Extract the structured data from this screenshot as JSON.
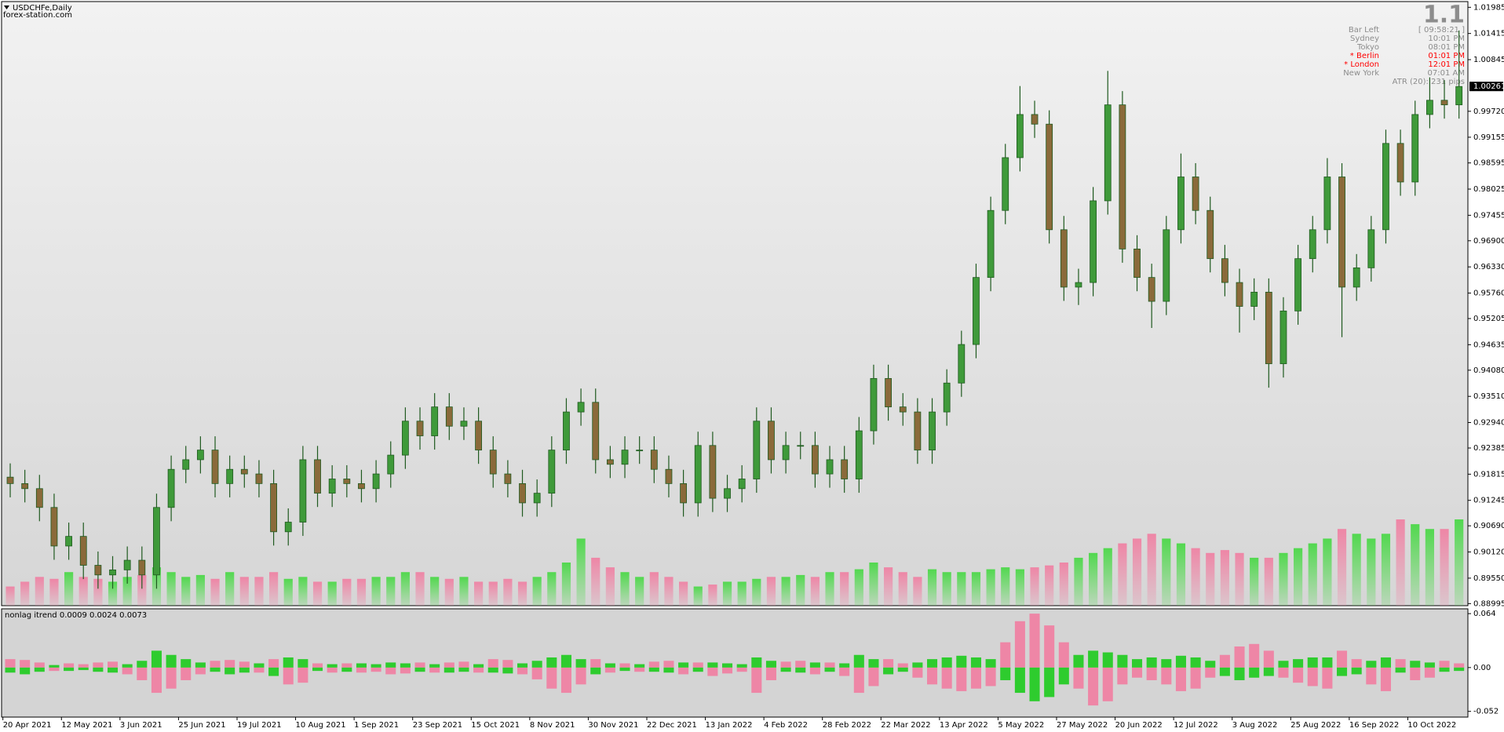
{
  "header": {
    "symbol": "USDCHFe,Daily",
    "source": "forex-station.com"
  },
  "info": {
    "big": "1.1",
    "rows": [
      {
        "label": "Bar Left",
        "value": "[ 09:58:21 ]"
      },
      {
        "label": "Sydney",
        "value": "10:01 PM"
      },
      {
        "label": "Tokyo",
        "value": "08:01 PM"
      },
      {
        "label": "* Berlin",
        "value": "01:01 PM",
        "color": "#ff0000"
      },
      {
        "label": "* London",
        "value": "12:01 PM",
        "color": "#ff0000"
      },
      {
        "label": "New York",
        "value": "07:01 AM"
      }
    ],
    "atr": "ATR (20): 231 pips"
  },
  "chart_data": [
    {
      "type": "candlestick",
      "categories": [
        "20 Apr 2021",
        null,
        null,
        null,
        "12 May 2021",
        null,
        null,
        null,
        "3 Jun 2021",
        null,
        null,
        null,
        "25 Jun 2021",
        null,
        null,
        null,
        "19 Jul 2021",
        null,
        null,
        null,
        "10 Aug 2021",
        null,
        null,
        null,
        "1 Sep 2021",
        null,
        null,
        null,
        "23 Sep 2021",
        null,
        null,
        null,
        "15 Oct 2021",
        null,
        null,
        null,
        "8 Nov 2021",
        null,
        null,
        null,
        "30 Nov 2021",
        null,
        null,
        null,
        "22 Dec 2021",
        null,
        null,
        null,
        "13 Jan 2022",
        null,
        null,
        null,
        "4 Feb 2022",
        null,
        null,
        null,
        "28 Feb 2022",
        null,
        null,
        null,
        "22 Mar 2022",
        null,
        null,
        null,
        "13 Apr 2022",
        null,
        null,
        null,
        "5 May 2022",
        null,
        null,
        null,
        "27 May 2022",
        null,
        null,
        null,
        "20 Jun 2022",
        null,
        null,
        null,
        "12 Jul 2022",
        null,
        null,
        null,
        "3 Aug 2022",
        null,
        null,
        null,
        "25 Aug 2022",
        null,
        null,
        null,
        "16 Sep 2022",
        null,
        null,
        null,
        "10 Oct 2022",
        null,
        null,
        null
      ],
      "open": [
        0.9175,
        0.9161,
        0.915,
        0.9109,
        0.9025,
        0.9046,
        0.8983,
        0.8962,
        0.8973,
        0.8994,
        0.8962,
        0.9109,
        0.9192,
        0.9213,
        0.9234,
        0.9161,
        0.9192,
        0.9182,
        0.9161,
        0.9056,
        0.9077,
        0.9213,
        0.914,
        0.9171,
        0.9161,
        0.915,
        0.9182,
        0.9223,
        0.9297,
        0.9265,
        0.9328,
        0.9286,
        0.9297,
        0.9234,
        0.9182,
        0.9161,
        0.9119,
        0.914,
        0.9234,
        0.9317,
        0.9338,
        0.9213,
        0.9203,
        0.9234,
        0.9234,
        0.9192,
        0.9161,
        0.9119,
        0.9244,
        0.9129,
        0.915,
        0.9171,
        0.9297,
        0.9213,
        0.9244,
        0.9244,
        0.9182,
        0.9213,
        0.9171,
        0.9276,
        0.939,
        0.9328,
        0.9317,
        0.9234,
        0.9317,
        0.938,
        0.9464,
        0.961,
        0.9756,
        0.9871,
        0.9965,
        0.9944,
        0.9714,
        0.9589,
        0.9599,
        0.9777,
        0.9986,
        0.9672,
        0.961,
        0.9558,
        0.9714,
        0.9829,
        0.9756,
        0.9651,
        0.9599,
        0.9547,
        0.9578,
        0.9422,
        0.9537,
        0.9651,
        0.9714,
        0.9829,
        0.9589,
        0.9631,
        0.9714,
        0.9902,
        0.9818,
        0.9965,
        0.9996,
        0.9986
      ],
      "high": [
        0.9205,
        0.9191,
        0.918,
        0.9139,
        0.9076,
        0.9076,
        0.9013,
        0.9003,
        0.9024,
        0.9024,
        0.9139,
        0.9222,
        0.9243,
        0.9264,
        0.9264,
        0.9222,
        0.9222,
        0.9212,
        0.9191,
        0.9107,
        0.9243,
        0.9243,
        0.9201,
        0.9201,
        0.9191,
        0.9212,
        0.9253,
        0.9327,
        0.9327,
        0.9358,
        0.9358,
        0.9327,
        0.9327,
        0.9264,
        0.9212,
        0.9191,
        0.917,
        0.9264,
        0.9347,
        0.9368,
        0.9368,
        0.9243,
        0.9264,
        0.9264,
        0.9264,
        0.9222,
        0.9191,
        0.9274,
        0.9274,
        0.918,
        0.9201,
        0.9327,
        0.9327,
        0.9274,
        0.9274,
        0.9274,
        0.9243,
        0.9243,
        0.9306,
        0.942,
        0.942,
        0.9358,
        0.9347,
        0.9347,
        0.941,
        0.9494,
        0.964,
        0.9786,
        0.9901,
        1.0027,
        0.9995,
        0.9974,
        0.9744,
        0.9629,
        0.9807,
        1.006,
        1.0016,
        0.9702,
        0.964,
        0.9744,
        0.988,
        0.9859,
        0.9786,
        0.9681,
        0.9629,
        0.9608,
        0.9608,
        0.9567,
        0.9681,
        0.9744,
        0.987,
        0.9859,
        0.9661,
        0.9744,
        0.9932,
        0.9932,
        0.9995,
        1.0046,
        1.004,
        1.0148
      ],
      "low": [
        0.9131,
        0.912,
        0.9079,
        0.8995,
        0.8995,
        0.8953,
        0.8932,
        0.8932,
        0.8943,
        0.8932,
        0.8932,
        0.9079,
        0.9162,
        0.9183,
        0.9131,
        0.9131,
        0.9152,
        0.9131,
        0.9026,
        0.9026,
        0.9047,
        0.911,
        0.911,
        0.9131,
        0.912,
        0.912,
        0.9152,
        0.9193,
        0.9235,
        0.9235,
        0.9256,
        0.9256,
        0.9204,
        0.9152,
        0.9131,
        0.9089,
        0.9089,
        0.911,
        0.9204,
        0.9287,
        0.9183,
        0.9173,
        0.9173,
        0.9204,
        0.9162,
        0.9131,
        0.9089,
        0.9089,
        0.9099,
        0.9099,
        0.912,
        0.9141,
        0.9183,
        0.9183,
        0.9214,
        0.9152,
        0.9152,
        0.9141,
        0.9141,
        0.9246,
        0.9298,
        0.9287,
        0.9204,
        0.9204,
        0.9287,
        0.935,
        0.9434,
        0.958,
        0.9726,
        0.9841,
        0.9914,
        0.9684,
        0.9559,
        0.955,
        0.9569,
        0.9747,
        0.9642,
        0.958,
        0.95,
        0.9528,
        0.9684,
        0.9726,
        0.9621,
        0.9569,
        0.949,
        0.9517,
        0.937,
        0.9392,
        0.9507,
        0.9621,
        0.9684,
        0.948,
        0.9559,
        0.9601,
        0.9684,
        0.9788,
        0.9788,
        0.9935,
        0.9956,
        0.9956
      ],
      "close": [
        0.9161,
        0.915,
        0.9109,
        0.9025,
        0.9046,
        0.8983,
        0.8962,
        0.8973,
        0.8994,
        0.8962,
        0.9109,
        0.9192,
        0.9213,
        0.9234,
        0.9161,
        0.9192,
        0.9182,
        0.9161,
        0.9056,
        0.9077,
        0.9213,
        0.914,
        0.9171,
        0.9161,
        0.915,
        0.9182,
        0.9223,
        0.9297,
        0.9265,
        0.9328,
        0.9286,
        0.9297,
        0.9234,
        0.9182,
        0.9161,
        0.9119,
        0.914,
        0.9234,
        0.9317,
        0.9338,
        0.9213,
        0.9203,
        0.9234,
        0.9234,
        0.9192,
        0.9161,
        0.9119,
        0.9244,
        0.9129,
        0.915,
        0.9171,
        0.9297,
        0.9213,
        0.9244,
        0.9244,
        0.9182,
        0.9213,
        0.9171,
        0.9276,
        0.939,
        0.9328,
        0.9317,
        0.9234,
        0.9317,
        0.938,
        0.9464,
        0.961,
        0.9756,
        0.9871,
        0.9965,
        0.9944,
        0.9714,
        0.9589,
        0.9599,
        0.9777,
        0.9986,
        0.9672,
        0.961,
        0.9558,
        0.9714,
        0.9829,
        0.9756,
        0.9651,
        0.9599,
        0.9547,
        0.9578,
        0.9422,
        0.9537,
        0.9651,
        0.9714,
        0.9829,
        0.9589,
        0.9631,
        0.9714,
        0.9902,
        0.9818,
        0.9965,
        0.9996,
        0.9986,
        1.0026
      ],
      "volume": [
        20,
        25,
        30,
        28,
        35,
        30,
        28,
        25,
        30,
        32,
        40,
        35,
        30,
        32,
        28,
        35,
        30,
        30,
        35,
        28,
        30,
        25,
        25,
        28,
        28,
        30,
        30,
        35,
        35,
        30,
        28,
        30,
        25,
        25,
        28,
        25,
        30,
        35,
        45,
        70,
        50,
        40,
        35,
        30,
        35,
        30,
        25,
        20,
        22,
        25,
        25,
        28,
        30,
        30,
        32,
        30,
        35,
        35,
        38,
        45,
        40,
        35,
        30,
        38,
        35,
        35,
        35,
        38,
        40,
        38,
        40,
        42,
        45,
        50,
        55,
        60,
        65,
        70,
        75,
        70,
        65,
        60,
        55,
        58,
        55,
        50,
        50,
        55,
        60,
        65,
        70,
        80,
        75,
        70,
        75,
        90,
        85,
        80,
        80,
        90
      ],
      "up_color": "#3f9a3a",
      "down_color": "#8a6a3a",
      "wick_color": "#1f5a1f",
      "volume_up_color": "#52d84f",
      "volume_down_color": "#ee86a6",
      "last_price": 1.00261,
      "ylim": [
        0.8895,
        1.0211
      ],
      "yticks": [
        1.01985,
        1.01415,
        1.00845,
        {
          "value": 0.9972,
          "label": "0.99720"
        },
        0.99155,
        0.98595,
        0.98025,
        0.97455,
        {
          "value": 0.969,
          "label": "0.96900"
        },
        {
          "value": 0.9633,
          "label": "0.96330"
        },
        {
          "value": 0.9576,
          "label": "0.95760"
        },
        0.95205,
        0.94635,
        {
          "value": 0.9408,
          "label": "0.94080"
        },
        {
          "value": 0.9351,
          "label": "0.93510"
        },
        {
          "value": 0.9294,
          "label": "0.92940"
        },
        0.92385,
        0.91815,
        0.91245,
        {
          "value": 0.9069,
          "label": "0.90690"
        },
        {
          "value": 0.9012,
          "label": "0.90120"
        },
        {
          "value": 0.8955,
          "label": "0.89550"
        },
        0.88995
      ]
    },
    {
      "type": "bar",
      "title": "nonlag itrend 0.0009 0.0024 0.0073",
      "series": [
        {
          "color": "#ee86a6",
          "values": [
            0.01,
            0.009,
            0.006,
            -0.004,
            0.005,
            0.004,
            0.006,
            0.007,
            -0.008,
            -0.015,
            -0.03,
            -0.025,
            -0.015,
            -0.008,
            0.008,
            0.009,
            0.007,
            -0.006,
            0.01,
            -0.02,
            -0.018,
            0.005,
            -0.006,
            0.005,
            -0.006,
            -0.005,
            -0.008,
            -0.007,
            0.006,
            -0.006,
            0.006,
            0.007,
            -0.006,
            0.01,
            0.009,
            -0.008,
            -0.014,
            -0.025,
            -0.03,
            -0.02,
            0.01,
            -0.006,
            0.005,
            -0.005,
            0.007,
            0.008,
            -0.008,
            0.006,
            -0.01,
            -0.007,
            -0.005,
            -0.03,
            -0.015,
            0.007,
            0.008,
            -0.008,
            0.006,
            -0.01,
            -0.03,
            -0.022,
            0.01,
            0.005,
            -0.012,
            -0.02,
            -0.025,
            -0.028,
            -0.025,
            -0.022,
            0.03,
            0.055,
            0.064,
            0.05,
            0.03,
            -0.025,
            -0.045,
            -0.04,
            -0.02,
            -0.012,
            -0.015,
            -0.02,
            -0.028,
            -0.025,
            -0.012,
            0.015,
            0.025,
            0.028,
            0.02,
            -0.012,
            -0.018,
            -0.022,
            -0.025,
            0.02,
            0.01,
            -0.02,
            -0.028,
            0.01,
            -0.015,
            -0.012,
            0.008,
            0.005
          ]
        },
        {
          "color": "#2ecc2e",
          "values": [
            -0.006,
            -0.008,
            -0.005,
            0.003,
            -0.004,
            -0.003,
            -0.005,
            -0.006,
            0.004,
            0.008,
            0.02,
            0.015,
            0.01,
            0.006,
            -0.005,
            -0.008,
            -0.006,
            0.005,
            -0.01,
            0.012,
            0.01,
            -0.004,
            0.004,
            -0.005,
            0.005,
            0.004,
            0.006,
            0.005,
            -0.005,
            0.004,
            -0.006,
            -0.005,
            0.004,
            -0.006,
            -0.007,
            0.005,
            0.008,
            0.012,
            0.015,
            0.01,
            -0.008,
            0.005,
            -0.004,
            0.004,
            -0.005,
            -0.006,
            0.006,
            -0.005,
            0.006,
            0.005,
            0.004,
            0.012,
            0.008,
            -0.005,
            -0.006,
            0.006,
            -0.005,
            0.005,
            0.015,
            0.01,
            -0.008,
            -0.005,
            0.006,
            0.01,
            0.012,
            0.014,
            0.012,
            0.01,
            -0.015,
            -0.03,
            -0.04,
            -0.035,
            -0.02,
            0.015,
            0.02,
            0.018,
            0.015,
            0.01,
            0.012,
            0.01,
            0.014,
            0.012,
            0.008,
            -0.01,
            -0.015,
            -0.012,
            -0.01,
            0.008,
            0.01,
            0.012,
            0.012,
            -0.01,
            -0.008,
            0.008,
            0.012,
            -0.006,
            0.008,
            0.006,
            -0.005,
            -0.004
          ]
        }
      ],
      "ylim": [
        -0.0588,
        0.0697
      ],
      "yticks": [
        0.064,
        {
          "value": 0,
          "label": "0.00"
        },
        -0.052
      ]
    }
  ]
}
